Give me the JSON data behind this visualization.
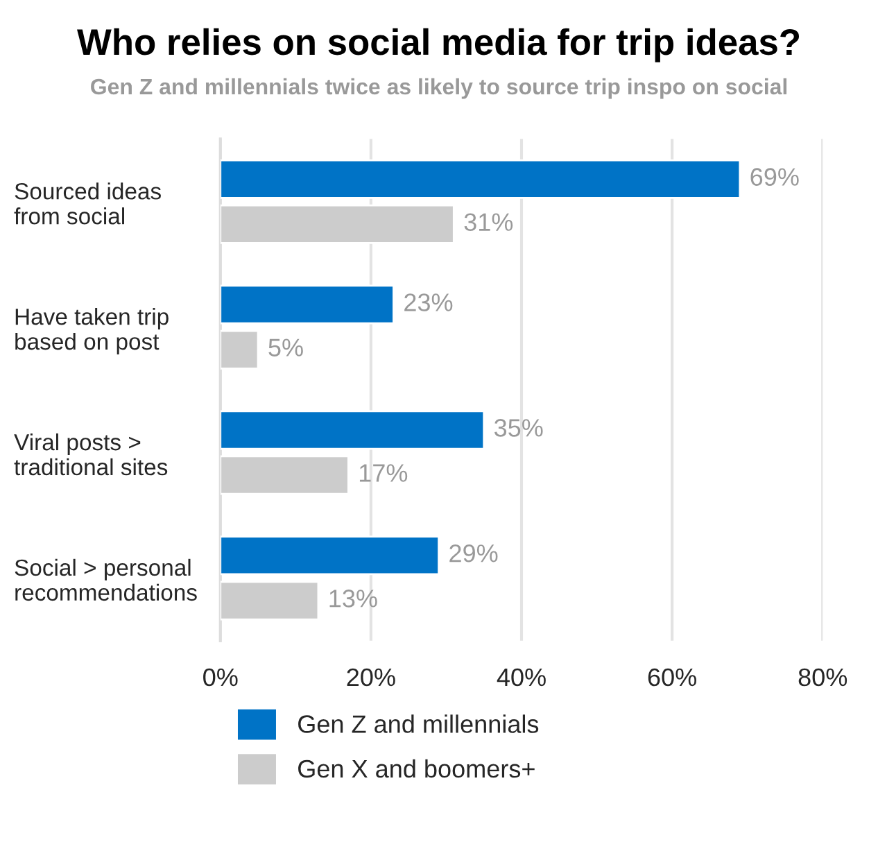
{
  "chart_data": {
    "type": "bar",
    "orientation": "horizontal",
    "title": "Who relies on social media for trip ideas?",
    "subtitle": "Gen Z and millennials twice as likely to source trip inspo on social",
    "categories": [
      "Sourced ideas\nfrom social",
      "Have taken trip\nbased on post",
      "Viral posts >\ntraditional sites",
      "Social > personal\nrecommendations"
    ],
    "series": [
      {
        "name": "Gen Z and millennials",
        "color": "#0073c6",
        "values": [
          69,
          23,
          35,
          29
        ],
        "value_labels": [
          "69%",
          "23%",
          "35%",
          "29%"
        ]
      },
      {
        "name": "Gen X and boomers+",
        "color": "#cccccc",
        "values": [
          31,
          5,
          17,
          13
        ],
        "value_labels": [
          "31%",
          "5%",
          "17%",
          "13%"
        ]
      }
    ],
    "xlim": [
      0,
      80
    ],
    "xticks": [
      {
        "value": 0,
        "label": "0%"
      },
      {
        "value": 20,
        "label": "20%"
      },
      {
        "value": 40,
        "label": "40%"
      },
      {
        "value": 60,
        "label": "60%"
      },
      {
        "value": 80,
        "label": "80%"
      }
    ],
    "grid": "x",
    "legend": "bottom left"
  }
}
